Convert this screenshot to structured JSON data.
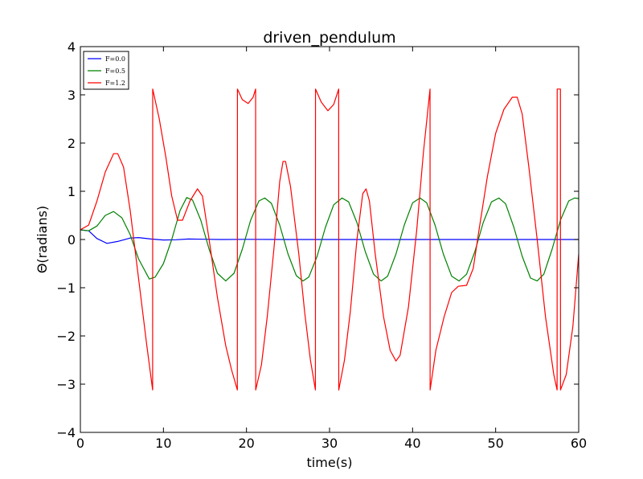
{
  "chart_data": {
    "type": "line",
    "title": "driven_pendulum",
    "xlabel": "time(s)",
    "ylabel": "Θ(radians)",
    "xlim": [
      0,
      60
    ],
    "ylim": [
      -4,
      4
    ],
    "xticks": [
      0,
      10,
      20,
      30,
      40,
      50,
      60
    ],
    "xtick_labels": [
      "0",
      "10",
      "20",
      "30",
      "40",
      "50",
      "60"
    ],
    "yticks": [
      -4,
      -3,
      -2,
      -1,
      0,
      1,
      2,
      3,
      4
    ],
    "ytick_labels": [
      "−4",
      "−3",
      "−2",
      "−1",
      "0",
      "1",
      "2",
      "3",
      "4"
    ],
    "grid": false,
    "legend": "top-left",
    "series": [
      {
        "name": "F=0.0",
        "color": "#0000ff",
        "points": [
          [
            0,
            0.2
          ],
          [
            1,
            0.18
          ],
          [
            2,
            0.02
          ],
          [
            3.2,
            -0.08
          ],
          [
            4.5,
            -0.04
          ],
          [
            6,
            0.03
          ],
          [
            7,
            0.04
          ],
          [
            8.5,
            0.01
          ],
          [
            10,
            -0.01
          ],
          [
            11.5,
            -0.005
          ],
          [
            13,
            0.01
          ],
          [
            15,
            0.005
          ],
          [
            17,
            0
          ],
          [
            20,
            0.003
          ],
          [
            25,
            0
          ],
          [
            30,
            0
          ],
          [
            40,
            0
          ],
          [
            50,
            0
          ],
          [
            60,
            0
          ]
        ]
      },
      {
        "name": "F=0.5",
        "color": "#008000",
        "points": [
          [
            0,
            0.2
          ],
          [
            1,
            0.18
          ],
          [
            2,
            0.28
          ],
          [
            3,
            0.5
          ],
          [
            4,
            0.58
          ],
          [
            5,
            0.45
          ],
          [
            6,
            0.1
          ],
          [
            7,
            -0.4
          ],
          [
            8.3,
            -0.82
          ],
          [
            9,
            -0.78
          ],
          [
            10,
            -0.5
          ],
          [
            11,
            0
          ],
          [
            12,
            0.6
          ],
          [
            12.8,
            0.87
          ],
          [
            13.5,
            0.82
          ],
          [
            14.5,
            0.4
          ],
          [
            15.5,
            -0.2
          ],
          [
            16.5,
            -0.7
          ],
          [
            17.5,
            -0.86
          ],
          [
            18.5,
            -0.7
          ],
          [
            19.5,
            -0.2
          ],
          [
            20.5,
            0.4
          ],
          [
            21.5,
            0.8
          ],
          [
            22.2,
            0.86
          ],
          [
            23,
            0.75
          ],
          [
            24,
            0.3
          ],
          [
            25,
            -0.3
          ],
          [
            26,
            -0.75
          ],
          [
            26.8,
            -0.86
          ],
          [
            27.5,
            -0.78
          ],
          [
            28.5,
            -0.35
          ],
          [
            29.5,
            0.25
          ],
          [
            30.5,
            0.72
          ],
          [
            31.5,
            0.86
          ],
          [
            32.3,
            0.78
          ],
          [
            33.3,
            0.35
          ],
          [
            34.3,
            -0.25
          ],
          [
            35.3,
            -0.72
          ],
          [
            36.2,
            -0.86
          ],
          [
            37,
            -0.76
          ],
          [
            38,
            -0.3
          ],
          [
            39,
            0.3
          ],
          [
            40,
            0.76
          ],
          [
            40.9,
            0.86
          ],
          [
            41.7,
            0.76
          ],
          [
            42.7,
            0.3
          ],
          [
            43.7,
            -0.3
          ],
          [
            44.7,
            -0.76
          ],
          [
            45.6,
            -0.86
          ],
          [
            46.5,
            -0.72
          ],
          [
            47.5,
            -0.25
          ],
          [
            48.5,
            0.35
          ],
          [
            49.5,
            0.78
          ],
          [
            50.4,
            0.86
          ],
          [
            51.2,
            0.74
          ],
          [
            52.2,
            0.25
          ],
          [
            53.2,
            -0.35
          ],
          [
            54.2,
            -0.8
          ],
          [
            55,
            -0.86
          ],
          [
            55.8,
            -0.72
          ],
          [
            56.8,
            -0.2
          ],
          [
            57.8,
            0.4
          ],
          [
            58.8,
            0.8
          ],
          [
            59.5,
            0.86
          ],
          [
            60,
            0.85
          ]
        ]
      },
      {
        "name": "F=1.2",
        "color": "#ff0000",
        "points": [
          [
            0,
            0.2
          ],
          [
            1,
            0.3
          ],
          [
            2,
            0.8
          ],
          [
            3,
            1.4
          ],
          [
            4,
            1.78
          ],
          [
            4.5,
            1.78
          ],
          [
            5.2,
            1.5
          ],
          [
            6,
            0.6
          ],
          [
            7,
            -0.8
          ],
          [
            8,
            -2.2
          ],
          [
            8.7,
            -3.12
          ],
          [
            8.71,
            3.12
          ],
          [
            9.5,
            2.5
          ],
          [
            10.3,
            1.7
          ],
          [
            11,
            0.9
          ],
          [
            11.7,
            0.4
          ],
          [
            12.3,
            0.4
          ],
          [
            13.2,
            0.8
          ],
          [
            14.1,
            1.05
          ],
          [
            14.7,
            0.9
          ],
          [
            15.5,
            0
          ],
          [
            16.5,
            -1.2
          ],
          [
            17.5,
            -2.2
          ],
          [
            18.2,
            -2.7
          ],
          [
            18.9,
            -3.12
          ],
          [
            18.91,
            3.12
          ],
          [
            19.5,
            2.9
          ],
          [
            20.2,
            2.82
          ],
          [
            20.8,
            2.95
          ],
          [
            21.1,
            3.12
          ],
          [
            21.11,
            -3.12
          ],
          [
            21.8,
            -2.6
          ],
          [
            22.5,
            -1.6
          ],
          [
            23.3,
            -0.2
          ],
          [
            24,
            1.2
          ],
          [
            24.4,
            1.62
          ],
          [
            24.7,
            1.62
          ],
          [
            25.3,
            1.1
          ],
          [
            26.3,
            -0.3
          ],
          [
            27,
            -1.5
          ],
          [
            27.7,
            -2.5
          ],
          [
            28.3,
            -3.12
          ],
          [
            28.31,
            3.12
          ],
          [
            29,
            2.85
          ],
          [
            29.8,
            2.67
          ],
          [
            30.5,
            2.8
          ],
          [
            31.1,
            3.12
          ],
          [
            31.11,
            -3.12
          ],
          [
            31.8,
            -2.5
          ],
          [
            32.5,
            -1.5
          ],
          [
            33.3,
            0
          ],
          [
            34,
            0.95
          ],
          [
            34.4,
            1.05
          ],
          [
            34.8,
            0.8
          ],
          [
            35.5,
            -0.3
          ],
          [
            36.5,
            -1.6
          ],
          [
            37.3,
            -2.3
          ],
          [
            38,
            -2.52
          ],
          [
            38.5,
            -2.4
          ],
          [
            39.5,
            -1.4
          ],
          [
            40.5,
            0.2
          ],
          [
            41.3,
            1.8
          ],
          [
            42.1,
            3.12
          ],
          [
            42.11,
            -3.12
          ],
          [
            42.8,
            -2.3
          ],
          [
            43.8,
            -1.6
          ],
          [
            44.7,
            -1.1
          ],
          [
            45.5,
            -0.97
          ],
          [
            46.5,
            -0.95
          ],
          [
            47.3,
            -0.6
          ],
          [
            48,
            0.2
          ],
          [
            49,
            1.3
          ],
          [
            50,
            2.2
          ],
          [
            51,
            2.7
          ],
          [
            52,
            2.95
          ],
          [
            52.6,
            2.95
          ],
          [
            53.2,
            2.6
          ],
          [
            54,
            1.5
          ],
          [
            55,
            0
          ],
          [
            56,
            -1.6
          ],
          [
            57,
            -2.8
          ],
          [
            57.4,
            -3.12
          ],
          [
            57.41,
            3.12
          ],
          [
            57.8,
            3.12
          ],
          [
            57.81,
            -3.12
          ],
          [
            58.5,
            -2.8
          ],
          [
            59.3,
            -1.8
          ],
          [
            60,
            -0.3
          ]
        ]
      }
    ]
  }
}
